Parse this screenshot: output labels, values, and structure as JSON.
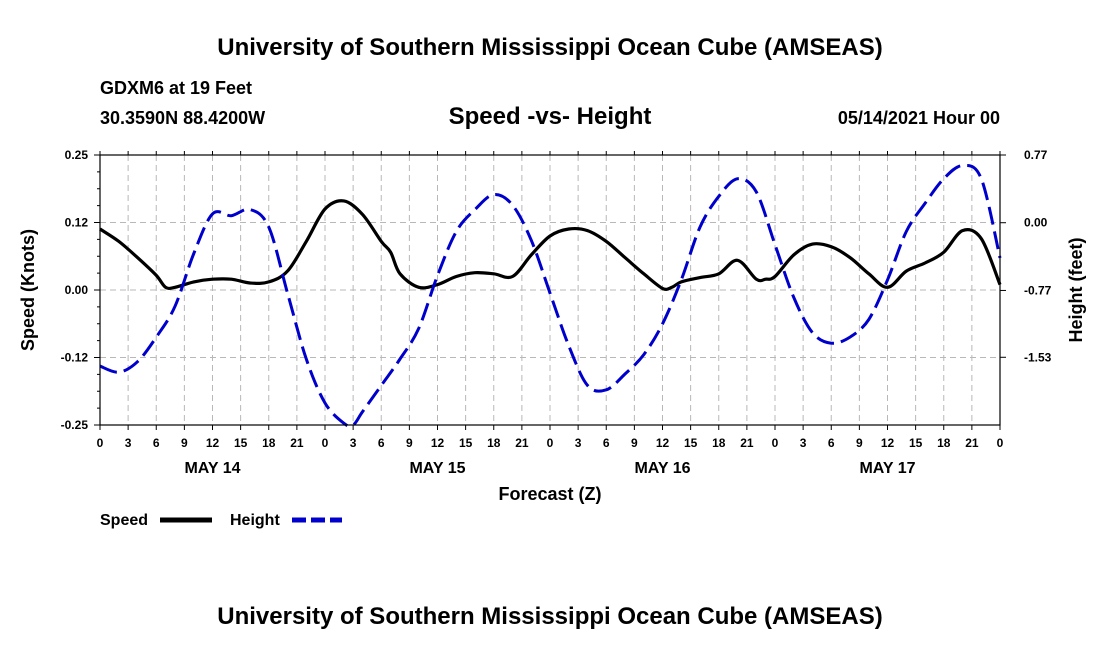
{
  "header": {
    "title": "University of Southern Mississippi Ocean Cube (AMSEAS)",
    "station": "GDXM6 at 19 Feet",
    "coords": "30.3590N  88.4200W",
    "date": "05/14/2021 Hour 00"
  },
  "footer": {
    "title": "University of Southern Mississippi Ocean Cube (AMSEAS)"
  },
  "chart_data": {
    "type": "line",
    "title": "Speed -vs- Height",
    "xlabel": "Forecast (Z)",
    "ylabel_left": "Speed (Knots)",
    "ylabel_right": "Height (feet)",
    "xlim": [
      0,
      96
    ],
    "ylim_left": [
      -0.25,
      0.25
    ],
    "ylim_right": [
      -2.3,
      0.77
    ],
    "grid": true,
    "x_tick_labels": [
      "0",
      "3",
      "6",
      "9",
      "12",
      "15",
      "18",
      "21",
      "0",
      "3",
      "6",
      "9",
      "12",
      "15",
      "18",
      "21",
      "0",
      "3",
      "6",
      "9",
      "12",
      "15",
      "18",
      "21",
      "0",
      "3",
      "6",
      "9",
      "12",
      "15",
      "18",
      "21",
      "0"
    ],
    "day_labels": [
      {
        "label": "MAY 14",
        "hour": 12
      },
      {
        "label": "MAY 15",
        "hour": 36
      },
      {
        "label": "MAY 16",
        "hour": 60
      },
      {
        "label": "MAY 17",
        "hour": 84
      }
    ],
    "y_left_ticks": [
      {
        "value": 0.25,
        "label": "0.25"
      },
      {
        "value": 0.125,
        "label": "0.12"
      },
      {
        "value": 0.0,
        "label": "0.00"
      },
      {
        "value": -0.125,
        "label": "-0.12"
      },
      {
        "value": -0.25,
        "label": "-0.25"
      }
    ],
    "y_right_ticks": [
      {
        "value": 0.77,
        "label": "0.77"
      },
      {
        "value": 0.0,
        "label": "0.00"
      },
      {
        "value": -0.77,
        "label": "-0.77"
      },
      {
        "value": -1.53,
        "label": "-1.53"
      }
    ],
    "legend": [
      {
        "name": "Speed",
        "color": "#000000",
        "style": "solid"
      },
      {
        "name": "Height",
        "color": "#0000cc",
        "style": "dashed"
      }
    ],
    "series": [
      {
        "name": "Speed",
        "axis": "left",
        "color": "#000000",
        "x": [
          0,
          2,
          4,
          6,
          7,
          8,
          10,
          12,
          14,
          16,
          18,
          20,
          22,
          24,
          26,
          28,
          30,
          31,
          32,
          34,
          36,
          38,
          40,
          42,
          44,
          46,
          48,
          50,
          52,
          54,
          56,
          58,
          60,
          61,
          62,
          64,
          66,
          68,
          70,
          71,
          72,
          74,
          76,
          78,
          80,
          82,
          84,
          86,
          88,
          90,
          92,
          94,
          96
        ],
        "y": [
          0.113,
          0.09,
          0.06,
          0.027,
          0.005,
          0.005,
          0.015,
          0.02,
          0.02,
          0.013,
          0.015,
          0.035,
          0.09,
          0.15,
          0.165,
          0.14,
          0.09,
          0.07,
          0.03,
          0.005,
          0.01,
          0.025,
          0.032,
          0.03,
          0.025,
          0.065,
          0.1,
          0.113,
          0.11,
          0.09,
          0.06,
          0.03,
          0.003,
          0.005,
          0.015,
          0.023,
          0.03,
          0.055,
          0.02,
          0.02,
          0.025,
          0.065,
          0.085,
          0.08,
          0.06,
          0.03,
          0.005,
          0.035,
          0.05,
          0.07,
          0.11,
          0.095,
          0.01
        ]
      },
      {
        "name": "Height",
        "axis": "right",
        "color": "#0000cc",
        "x": [
          0,
          2,
          4,
          6,
          8,
          10,
          12,
          14,
          16,
          18,
          20,
          22,
          24,
          26,
          27,
          28,
          30,
          32,
          34,
          36,
          38,
          40,
          42,
          44,
          46,
          48,
          50,
          52,
          54,
          56,
          58,
          60,
          62,
          64,
          66,
          68,
          70,
          72,
          74,
          76,
          78,
          80,
          82,
          84,
          86,
          88,
          90,
          92,
          94,
          96
        ],
        "y": [
          -1.63,
          -1.7,
          -1.58,
          -1.3,
          -0.95,
          -0.35,
          0.1,
          0.08,
          0.15,
          -0.05,
          -0.8,
          -1.55,
          -2.05,
          -2.28,
          -2.3,
          -2.15,
          -1.85,
          -1.55,
          -1.2,
          -0.6,
          -0.1,
          0.15,
          0.32,
          0.2,
          -0.2,
          -0.8,
          -1.4,
          -1.85,
          -1.9,
          -1.72,
          -1.5,
          -1.15,
          -0.65,
          -0.05,
          0.3,
          0.5,
          0.35,
          -0.25,
          -0.85,
          -1.25,
          -1.37,
          -1.3,
          -1.1,
          -0.65,
          -0.1,
          0.22,
          0.5,
          0.65,
          0.5,
          -0.4
        ]
      }
    ]
  }
}
